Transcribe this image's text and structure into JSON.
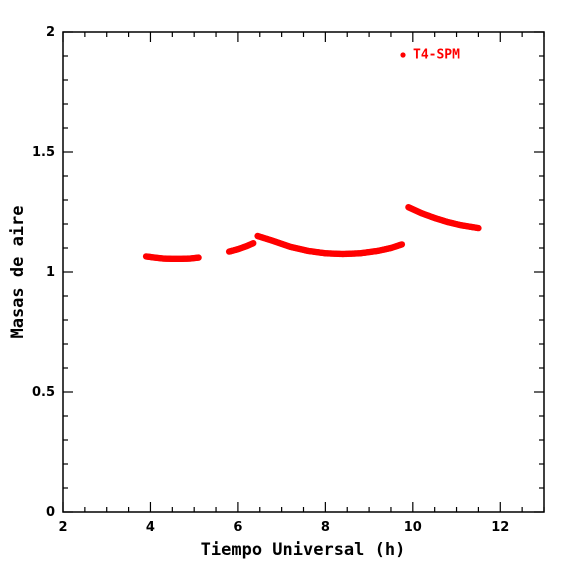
{
  "chart_data": {
    "type": "scatter",
    "xlabel": "Tiempo Universal (h)",
    "ylabel": "Masas de aire",
    "xlim": [
      2,
      13
    ],
    "ylim": [
      0,
      2
    ],
    "x_major_ticks": [
      2,
      4,
      6,
      8,
      10,
      12
    ],
    "x_tick_labels": [
      "2",
      "4",
      "6",
      "8",
      "10",
      "12"
    ],
    "y_major_ticks": [
      0,
      0.5,
      1,
      1.5,
      2
    ],
    "y_tick_labels": [
      "0",
      "0.5",
      "1",
      "1.5",
      "2"
    ],
    "x_minor_step": 0.5,
    "y_minor_step": 0.1,
    "grid": false,
    "legend_placement": "top-right",
    "series": [
      {
        "name": "T4-SPM",
        "color": "#ff0000",
        "segments": [
          {
            "x": [
              3.9,
              4.1,
              4.3,
              4.5,
              4.7,
              4.9,
              5.1
            ],
            "y": [
              1.065,
              1.06,
              1.056,
              1.055,
              1.055,
              1.056,
              1.06
            ]
          },
          {
            "x": [
              5.8,
              6.0,
              6.2,
              6.35
            ],
            "y": [
              1.085,
              1.095,
              1.108,
              1.12
            ]
          },
          {
            "x": [
              6.45,
              6.8,
              7.2,
              7.6,
              8.0,
              8.4,
              8.8,
              9.2,
              9.5,
              9.75
            ],
            "y": [
              1.15,
              1.13,
              1.105,
              1.088,
              1.078,
              1.075,
              1.078,
              1.088,
              1.1,
              1.115
            ]
          },
          {
            "x": [
              9.9,
              10.2,
              10.5,
              10.8,
              11.1,
              11.5
            ],
            "y": [
              1.27,
              1.245,
              1.225,
              1.208,
              1.195,
              1.183
            ]
          }
        ]
      }
    ]
  }
}
